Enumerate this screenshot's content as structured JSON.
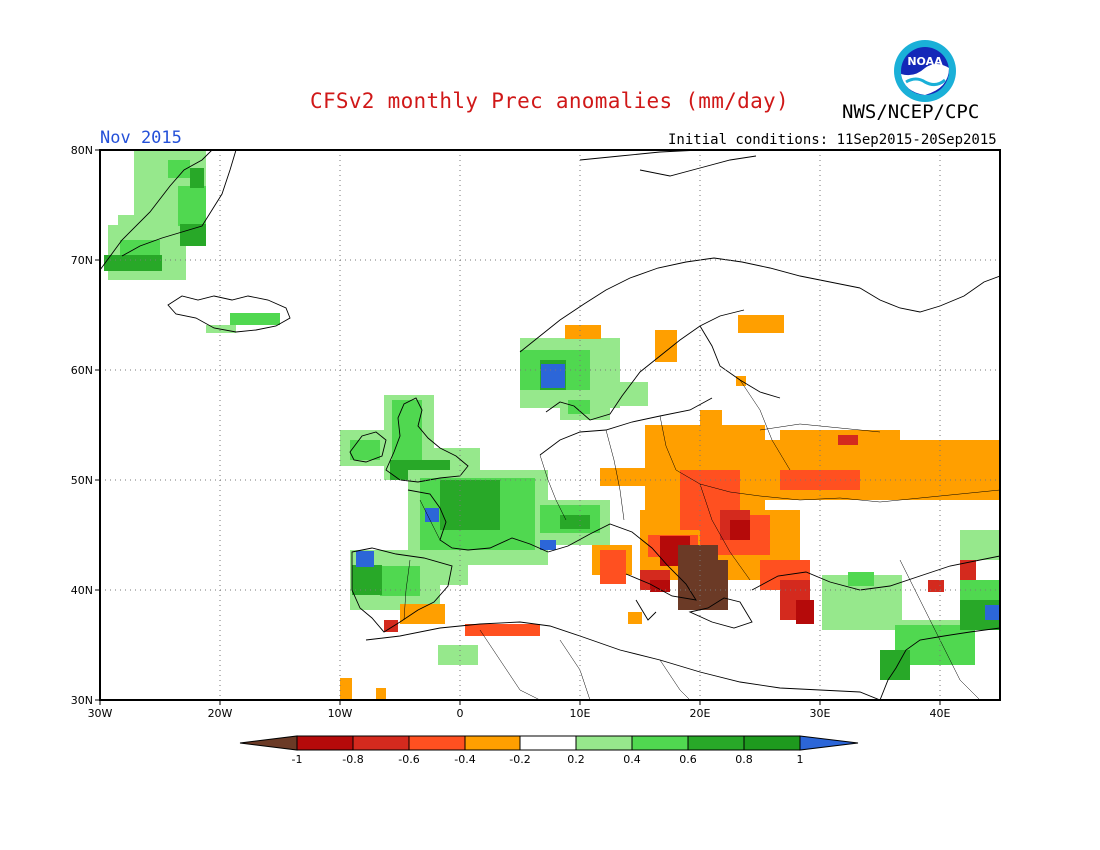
{
  "header": {
    "title": "CFSv2 monthly Prec anomalies (mm/day)",
    "org": "NWS/NCEP/CPC",
    "month": "Nov 2015",
    "initial_conditions": "Initial conditions: 11Sep2015-20Sep2015",
    "logo_text": "NOAA"
  },
  "map": {
    "lon_range": [
      -30,
      45
    ],
    "lat_range": [
      30,
      80
    ],
    "lat_labels": [
      "30N",
      "40N",
      "50N",
      "60N",
      "70N",
      "80N"
    ],
    "lon_labels": [
      "30W",
      "20W",
      "10W",
      "0",
      "10E",
      "20E",
      "30E",
      "40E"
    ],
    "grid": "dotted"
  },
  "colorbar": {
    "labels": [
      "-1",
      "-0.8",
      "-0.6",
      "-0.4",
      "-0.2",
      "0.2",
      "0.4",
      "0.6",
      "0.8",
      "1"
    ],
    "colors": [
      "#6b3a26",
      "#b50a0a",
      "#d42a1e",
      "#ff5020",
      "#ff9f00",
      "#ffffff",
      "#96e88c",
      "#50d850",
      "#28a828",
      "#1e9a1e",
      "#2c66d8"
    ]
  },
  "colors": {
    "title": "#d01818",
    "month": "#2450d8",
    "dark_green": "#1e9a1e",
    "green": "#28a828",
    "medium_green": "#50d850",
    "light_green": "#96e88c",
    "blue": "#2c66d8",
    "orange": "#ff9f00",
    "orange_red": "#ff5020",
    "red": "#d42a1e",
    "dark_red": "#b50a0a",
    "brown": "#6b3a26"
  }
}
